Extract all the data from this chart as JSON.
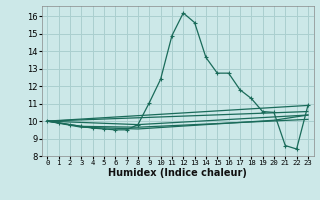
{
  "xlabel": "Humidex (Indice chaleur)",
  "bg_color": "#cce8e8",
  "grid_color": "#aacfcf",
  "line_color": "#1a6b5a",
  "xlim": [
    -0.5,
    23.5
  ],
  "ylim": [
    8.0,
    16.6
  ],
  "xticks": [
    0,
    1,
    2,
    3,
    4,
    5,
    6,
    7,
    8,
    9,
    10,
    11,
    12,
    13,
    14,
    15,
    16,
    17,
    18,
    19,
    20,
    21,
    22,
    23
  ],
  "yticks": [
    8,
    9,
    10,
    11,
    12,
    13,
    14,
    15,
    16
  ],
  "main_series": [
    [
      0,
      10.0
    ],
    [
      1,
      9.9
    ],
    [
      2,
      9.8
    ],
    [
      3,
      9.7
    ],
    [
      4,
      9.6
    ],
    [
      5,
      9.55
    ],
    [
      6,
      9.5
    ],
    [
      7,
      9.5
    ],
    [
      8,
      9.8
    ],
    [
      9,
      11.05
    ],
    [
      10,
      12.4
    ],
    [
      11,
      14.9
    ],
    [
      12,
      16.2
    ],
    [
      13,
      15.65
    ],
    [
      14,
      13.65
    ],
    [
      15,
      12.75
    ],
    [
      16,
      12.75
    ],
    [
      17,
      11.8
    ],
    [
      18,
      11.3
    ],
    [
      19,
      10.55
    ],
    [
      20,
      10.5
    ],
    [
      21,
      8.6
    ],
    [
      22,
      8.4
    ],
    [
      23,
      10.9
    ]
  ],
  "trend_lines": [
    [
      [
        0,
        10.0
      ],
      [
        23,
        10.9
      ]
    ],
    [
      [
        0,
        10.0
      ],
      [
        23,
        10.55
      ]
    ],
    [
      [
        0,
        10.0
      ],
      [
        8,
        9.8
      ],
      [
        23,
        10.35
      ]
    ],
    [
      [
        0,
        10.0
      ],
      [
        3,
        9.7
      ],
      [
        8,
        9.65
      ],
      [
        23,
        10.1
      ]
    ],
    [
      [
        0,
        10.0
      ],
      [
        3,
        9.65
      ],
      [
        8,
        9.55
      ],
      [
        20,
        10.05
      ],
      [
        23,
        10.35
      ]
    ]
  ]
}
